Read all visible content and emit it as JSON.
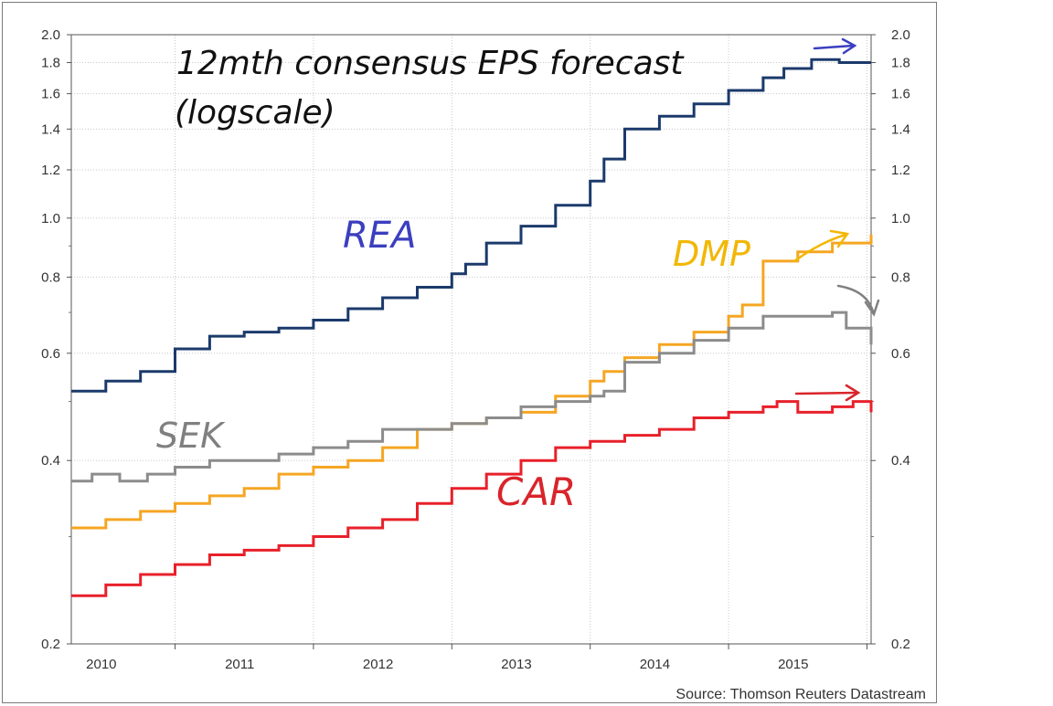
{
  "chart_data": {
    "type": "line",
    "title": "12mth consensus EPS forecast",
    "subtitle": "(logscale)",
    "source": "Source: Thomson Reuters Datastream",
    "y_scale": "log",
    "ylim": [
      0.2,
      2.0
    ],
    "xlim": [
      2009.75,
      2015.53
    ],
    "y_ticks": [
      {
        "value": 0.2,
        "label": "0.2"
      },
      {
        "value": 0.4,
        "label": "0.4"
      },
      {
        "value": 0.6,
        "label": "0.6"
      },
      {
        "value": 0.8,
        "label": "0.8"
      },
      {
        "value": 1.0,
        "label": "1.0"
      },
      {
        "value": 1.2,
        "label": "1.2"
      },
      {
        "value": 1.4,
        "label": "1.4"
      },
      {
        "value": 1.6,
        "label": "1.6"
      },
      {
        "value": 1.8,
        "label": "1.8"
      },
      {
        "value": 2.0,
        "label": "2.0"
      }
    ],
    "x_ticks": [
      {
        "value": 2010,
        "label": "2010"
      },
      {
        "value": 2011,
        "label": "2011"
      },
      {
        "value": 2012,
        "label": "2012"
      },
      {
        "value": 2013,
        "label": "2013"
      },
      {
        "value": 2014,
        "label": "2014"
      },
      {
        "value": 2015,
        "label": "2015"
      }
    ],
    "grid": true,
    "series": [
      {
        "name": "REA",
        "color": "#1b3a6b",
        "x": [
          2009.75,
          2010.0,
          2010.25,
          2010.5,
          2010.75,
          2011.0,
          2011.25,
          2011.5,
          2011.75,
          2012.0,
          2012.25,
          2012.5,
          2012.6,
          2012.75,
          2013.0,
          2013.25,
          2013.5,
          2013.6,
          2013.75,
          2014.0,
          2014.25,
          2014.5,
          2014.75,
          2014.9,
          2015.1,
          2015.3,
          2015.53
        ],
        "values": [
          0.52,
          0.54,
          0.56,
          0.61,
          0.64,
          0.65,
          0.66,
          0.68,
          0.71,
          0.74,
          0.77,
          0.81,
          0.84,
          0.91,
          0.97,
          1.05,
          1.15,
          1.25,
          1.4,
          1.47,
          1.54,
          1.62,
          1.7,
          1.76,
          1.82,
          1.8,
          1.8
        ]
      },
      {
        "name": "DMP",
        "color": "#f5a623",
        "x": [
          2009.75,
          2010.0,
          2010.25,
          2010.5,
          2010.75,
          2011.0,
          2011.25,
          2011.5,
          2011.75,
          2012.0,
          2012.25,
          2012.5,
          2012.75,
          2013.0,
          2013.25,
          2013.5,
          2013.6,
          2013.75,
          2014.0,
          2014.25,
          2014.5,
          2014.6,
          2014.75,
          2015.0,
          2015.25,
          2015.53
        ],
        "values": [
          0.31,
          0.32,
          0.33,
          0.34,
          0.35,
          0.36,
          0.38,
          0.39,
          0.4,
          0.42,
          0.45,
          0.46,
          0.47,
          0.48,
          0.51,
          0.54,
          0.56,
          0.59,
          0.62,
          0.65,
          0.69,
          0.72,
          0.85,
          0.88,
          0.91,
          0.94
        ]
      },
      {
        "name": "SEK",
        "color": "#8c8c8c",
        "x": [
          2009.75,
          2009.9,
          2010.1,
          2010.3,
          2010.5,
          2010.75,
          2011.0,
          2011.25,
          2011.5,
          2011.75,
          2012.0,
          2012.25,
          2012.5,
          2012.75,
          2013.0,
          2013.25,
          2013.5,
          2013.6,
          2013.75,
          2014.0,
          2014.25,
          2014.5,
          2014.75,
          2015.0,
          2015.25,
          2015.35,
          2015.53
        ],
        "values": [
          0.37,
          0.38,
          0.37,
          0.38,
          0.39,
          0.4,
          0.4,
          0.41,
          0.42,
          0.43,
          0.45,
          0.45,
          0.46,
          0.47,
          0.49,
          0.5,
          0.51,
          0.52,
          0.58,
          0.6,
          0.63,
          0.66,
          0.69,
          0.69,
          0.7,
          0.66,
          0.62
        ]
      },
      {
        "name": "CAR",
        "color": "#e8202a",
        "x": [
          2009.75,
          2010.0,
          2010.25,
          2010.5,
          2010.75,
          2011.0,
          2011.25,
          2011.5,
          2011.75,
          2012.0,
          2012.25,
          2012.5,
          2012.75,
          2013.0,
          2013.25,
          2013.5,
          2013.75,
          2014.0,
          2014.25,
          2014.5,
          2014.75,
          2014.85,
          2015.0,
          2015.25,
          2015.4,
          2015.53
        ],
        "values": [
          0.24,
          0.25,
          0.26,
          0.27,
          0.28,
          0.285,
          0.29,
          0.3,
          0.31,
          0.32,
          0.34,
          0.36,
          0.38,
          0.4,
          0.42,
          0.43,
          0.44,
          0.45,
          0.47,
          0.48,
          0.49,
          0.5,
          0.48,
          0.49,
          0.5,
          0.48
        ]
      }
    ],
    "annotations": {
      "rea_label": {
        "text": "REA",
        "color": "#3b3fbf"
      },
      "dmp_label": {
        "text": "DMP",
        "color": "#f2b705"
      },
      "sek_label": {
        "text": "SEK",
        "color": "#808080"
      },
      "car_label": {
        "text": "CAR",
        "color": "#d9242b"
      }
    }
  }
}
